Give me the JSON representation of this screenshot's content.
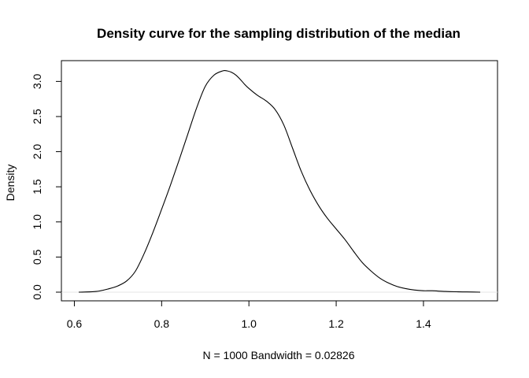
{
  "chart_data": {
    "type": "line",
    "title": "Density curve for the sampling distribution of the median",
    "xlabel": "N = 1000   Bandwidth = 0.02826",
    "ylabel": "Density",
    "xlim": [
      0.61,
      1.53
    ],
    "ylim": [
      0,
      3.15
    ],
    "x_ticks": [
      0.6,
      0.8,
      1.0,
      1.2,
      1.4
    ],
    "x_tick_labels": [
      "0.6",
      "0.8",
      "1.0",
      "1.2",
      "1.4"
    ],
    "y_ticks": [
      0.0,
      0.5,
      1.0,
      1.5,
      2.0,
      2.5,
      3.0
    ],
    "y_tick_labels": [
      "0.0",
      "0.5",
      "1.0",
      "1.5",
      "2.0",
      "2.5",
      "3.0"
    ],
    "baseline": 0,
    "grid": false,
    "series": [
      {
        "x": [
          0.61,
          0.65,
          0.68,
          0.7,
          0.72,
          0.74,
          0.76,
          0.78,
          0.8,
          0.82,
          0.84,
          0.86,
          0.88,
          0.9,
          0.92,
          0.94,
          0.95,
          0.96,
          0.97,
          0.98,
          0.99,
          1.0,
          1.02,
          1.04,
          1.06,
          1.08,
          1.1,
          1.12,
          1.14,
          1.16,
          1.18,
          1.2,
          1.22,
          1.24,
          1.26,
          1.28,
          1.3,
          1.32,
          1.34,
          1.36,
          1.38,
          1.4,
          1.42,
          1.45,
          1.48,
          1.5,
          1.53
        ],
        "y": [
          0.0,
          0.01,
          0.05,
          0.09,
          0.16,
          0.3,
          0.55,
          0.85,
          1.18,
          1.52,
          1.88,
          2.25,
          2.62,
          2.93,
          3.09,
          3.15,
          3.15,
          3.13,
          3.09,
          3.03,
          2.96,
          2.9,
          2.8,
          2.72,
          2.6,
          2.38,
          2.05,
          1.72,
          1.45,
          1.23,
          1.05,
          0.9,
          0.75,
          0.58,
          0.42,
          0.3,
          0.2,
          0.13,
          0.08,
          0.05,
          0.03,
          0.02,
          0.02,
          0.01,
          0.005,
          0.003,
          0.0
        ]
      }
    ]
  }
}
